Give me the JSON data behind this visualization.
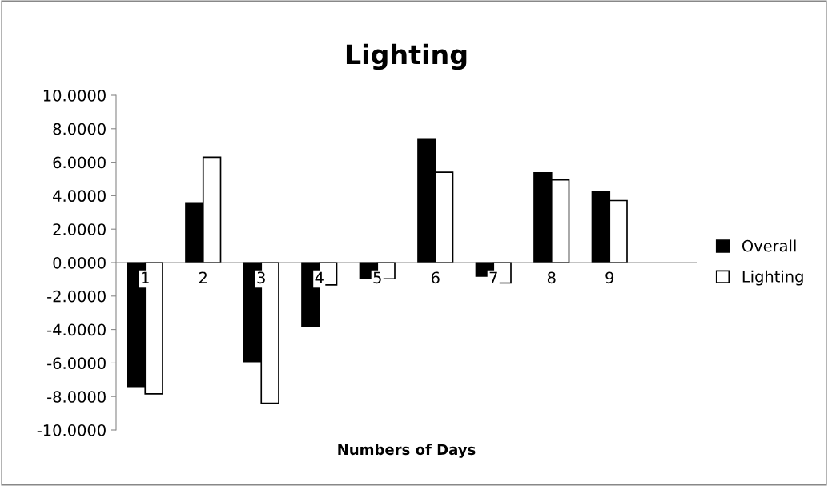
{
  "chart_data": {
    "type": "bar",
    "title": "Lighting",
    "xlabel": "Numbers of Days",
    "categories": [
      "1",
      "2",
      "3",
      "4",
      "5",
      "6",
      "7",
      "8",
      "9",
      null
    ],
    "series": [
      {
        "name": "Overall",
        "color": "#000000",
        "values": [
          -7.4,
          3.57,
          -5.92,
          -3.84,
          -0.97,
          7.4,
          -0.81,
          5.37,
          4.27,
          null
        ]
      },
      {
        "name": "Lighting",
        "color": "#ffffff",
        "values": [
          -7.84,
          6.3,
          -8.4,
          -1.33,
          -0.97,
          5.4,
          -1.22,
          4.94,
          3.71,
          null
        ]
      }
    ],
    "ylim": [
      -10,
      10
    ],
    "yticks": [
      {
        "value": -10,
        "label": "-10.0000"
      },
      {
        "value": -8,
        "label": "-8.0000"
      },
      {
        "value": -6,
        "label": "-6.0000"
      },
      {
        "value": -4,
        "label": "-4.0000"
      },
      {
        "value": -2,
        "label": "-2.0000"
      },
      {
        "value": 0,
        "label": "0.0000"
      },
      {
        "value": 2,
        "label": "2.0000"
      },
      {
        "value": 4,
        "label": "4.0000"
      },
      {
        "value": 6,
        "label": "6.0000"
      },
      {
        "value": 8,
        "label": "8.0000"
      },
      {
        "value": 10,
        "label": "10.0000"
      }
    ],
    "grid": false,
    "legend": "right"
  }
}
